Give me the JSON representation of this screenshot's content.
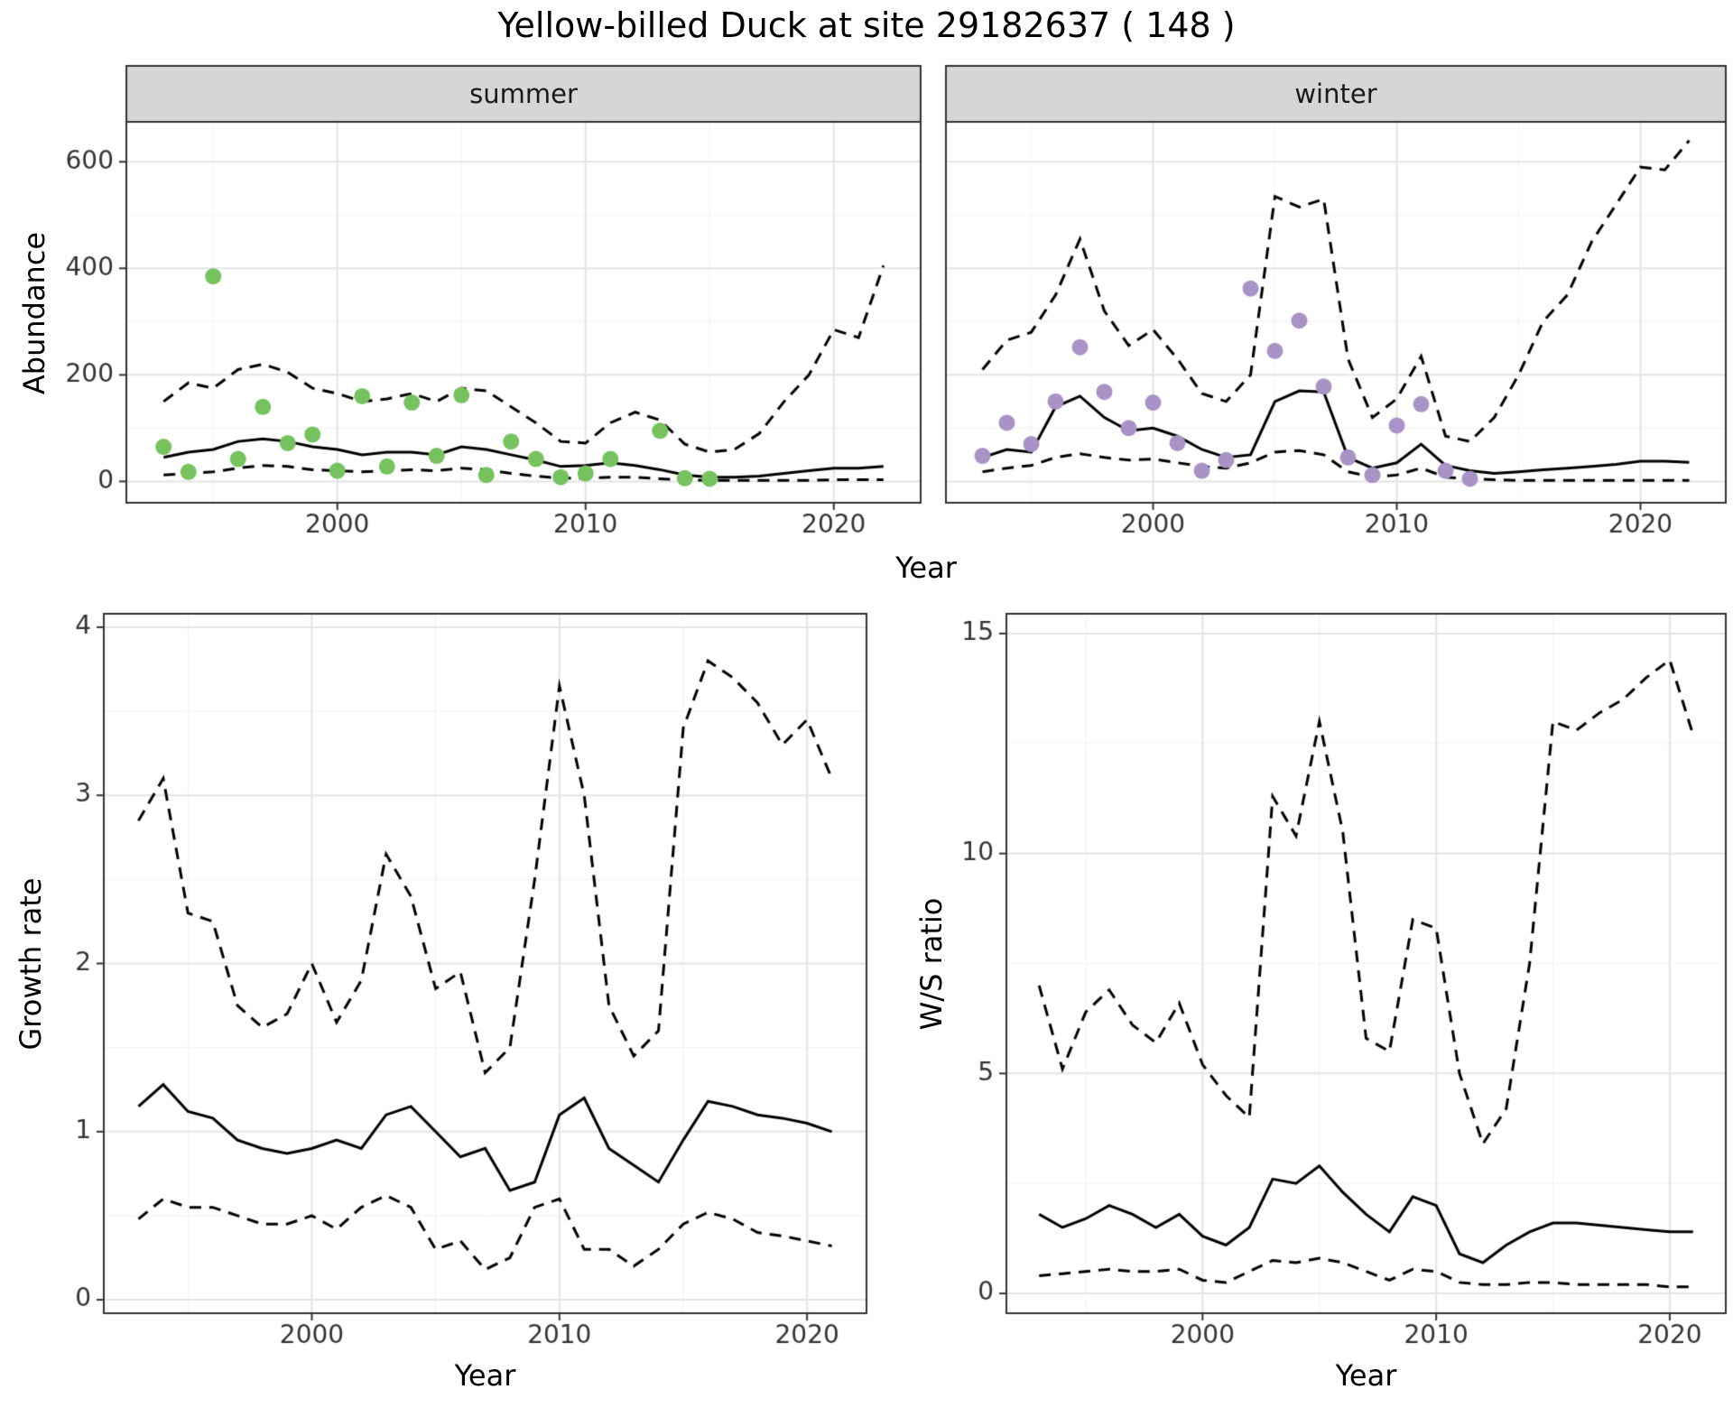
{
  "title": "Yellow-billed Duck at site 29182637 ( 148 )",
  "styles": {
    "line_color": "#000000",
    "grid_major": "#e4e4e4",
    "grid_minor": "#f3f3f3",
    "panel_border": "#333333",
    "strip_fill": "#d6d6d6",
    "tick_text": "#333333",
    "point_green": "#75c25f",
    "point_purple": "#a993c6"
  },
  "chart_data": [
    {
      "id": "abundance",
      "type": "line",
      "ylabel": "Abundance",
      "xlabel": "Year",
      "xlim": [
        1991.5,
        2023.5
      ],
      "ylim": [
        -40,
        675
      ],
      "xticks": [
        2000,
        2010,
        2020
      ],
      "yticks": [
        0,
        200,
        400,
        600
      ],
      "facets": [
        {
          "label": "summer",
          "x": [
            1993,
            1994,
            1995,
            1996,
            1997,
            1998,
            1999,
            2000,
            2001,
            2002,
            2003,
            2004,
            2005,
            2006,
            2007,
            2008,
            2009,
            2010,
            2011,
            2012,
            2013,
            2014,
            2015,
            2016,
            2017,
            2018,
            2019,
            2020,
            2021,
            2022
          ],
          "series": [
            {
              "name": "median",
              "style": "solid",
              "values": [
                45,
                55,
                60,
                75,
                80,
                75,
                65,
                60,
                50,
                55,
                55,
                50,
                65,
                60,
                50,
                40,
                28,
                30,
                35,
                30,
                22,
                12,
                8,
                8,
                10,
                15,
                20,
                25,
                25,
                28
              ]
            },
            {
              "name": "upper-ci",
              "style": "dashed",
              "values": [
                150,
                185,
                175,
                210,
                220,
                205,
                175,
                165,
                150,
                155,
                165,
                150,
                175,
                170,
                140,
                110,
                75,
                72,
                110,
                130,
                115,
                70,
                55,
                60,
                90,
                150,
                200,
                285,
                270,
                405
              ]
            },
            {
              "name": "lower-ci",
              "style": "dashed",
              "values": [
                12,
                15,
                18,
                25,
                30,
                28,
                22,
                20,
                18,
                20,
                22,
                20,
                25,
                22,
                15,
                10,
                6,
                6,
                8,
                8,
                5,
                3,
                2,
                2,
                2,
                2,
                2,
                3,
                3,
                3
              ]
            }
          ],
          "points": {
            "name": "observed-summer-counts",
            "color": "#75c25f",
            "x": [
              1993,
              1994,
              1995,
              1996,
              1997,
              1998,
              1999,
              2000,
              2001,
              2002,
              2003,
              2004,
              2005,
              2006,
              2007,
              2008,
              2009,
              2010,
              2011,
              2013,
              2014,
              2015
            ],
            "y": [
              65,
              18,
              385,
              42,
              140,
              72,
              88,
              20,
              160,
              28,
              148,
              48,
              162,
              12,
              75,
              42,
              8,
              15,
              42,
              95,
              6,
              5
            ]
          }
        },
        {
          "label": "winter",
          "x": [
            1993,
            1994,
            1995,
            1996,
            1997,
            1998,
            1999,
            2000,
            2001,
            2002,
            2003,
            2004,
            2005,
            2006,
            2007,
            2008,
            2009,
            2010,
            2011,
            2012,
            2013,
            2014,
            2015,
            2016,
            2017,
            2018,
            2019,
            2020,
            2021,
            2022
          ],
          "series": [
            {
              "name": "median",
              "style": "solid",
              "values": [
                45,
                60,
                55,
                140,
                160,
                120,
                95,
                100,
                85,
                60,
                45,
                50,
                150,
                170,
                168,
                45,
                25,
                35,
                70,
                30,
                20,
                15,
                18,
                22,
                25,
                28,
                32,
                38,
                38,
                36
              ]
            },
            {
              "name": "upper-ci",
              "style": "dashed",
              "values": [
                210,
                265,
                280,
                350,
                455,
                320,
                255,
                285,
                230,
                165,
                150,
                200,
                535,
                515,
                530,
                230,
                120,
                155,
                235,
                85,
                75,
                120,
                200,
                300,
                350,
                450,
                520,
                590,
                585,
                640
              ]
            },
            {
              "name": "lower-ci",
              "style": "dashed",
              "values": [
                18,
                25,
                30,
                45,
                52,
                45,
                40,
                42,
                35,
                28,
                25,
                35,
                55,
                58,
                50,
                18,
                8,
                12,
                25,
                8,
                5,
                3,
                2,
                2,
                2,
                2,
                2,
                2,
                2,
                2
              ]
            }
          ],
          "points": {
            "name": "observed-winter-counts",
            "color": "#a993c6",
            "x": [
              1993,
              1994,
              1995,
              1996,
              1997,
              1998,
              1999,
              2000,
              2001,
              2002,
              2003,
              2004,
              2005,
              2006,
              2007,
              2008,
              2009,
              2010,
              2011,
              2012,
              2013
            ],
            "y": [
              48,
              110,
              70,
              150,
              252,
              168,
              100,
              148,
              72,
              20,
              40,
              362,
              245,
              302,
              178,
              45,
              12,
              105,
              145,
              20,
              5
            ]
          }
        }
      ]
    },
    {
      "id": "growth-rate",
      "type": "line",
      "ylabel": "Growth rate",
      "xlabel": "Year",
      "xlim": [
        1991.6,
        2022.4
      ],
      "ylim": [
        -0.08,
        4.08
      ],
      "xticks": [
        2000,
        2010,
        2020
      ],
      "yticks": [
        0,
        1,
        2,
        3,
        4
      ],
      "x": [
        1993,
        1994,
        1995,
        1996,
        1997,
        1998,
        1999,
        2000,
        2001,
        2002,
        2003,
        2004,
        2005,
        2006,
        2007,
        2008,
        2009,
        2010,
        2011,
        2012,
        2013,
        2014,
        2015,
        2016,
        2017,
        2018,
        2019,
        2020,
        2021
      ],
      "series": [
        {
          "name": "median",
          "style": "solid",
          "values": [
            1.15,
            1.28,
            1.12,
            1.08,
            0.95,
            0.9,
            0.87,
            0.9,
            0.95,
            0.9,
            1.1,
            1.15,
            1.0,
            0.85,
            0.9,
            0.65,
            0.7,
            1.1,
            1.2,
            0.9,
            0.8,
            0.7,
            0.95,
            1.18,
            1.15,
            1.1,
            1.08,
            1.05,
            1.0
          ]
        },
        {
          "name": "upper-ci",
          "style": "dashed",
          "values": [
            2.85,
            3.1,
            2.3,
            2.25,
            1.75,
            1.62,
            1.7,
            2.0,
            1.65,
            1.9,
            2.65,
            2.4,
            1.85,
            1.95,
            1.35,
            1.5,
            2.5,
            3.65,
            3.0,
            1.75,
            1.45,
            1.6,
            3.4,
            3.8,
            3.7,
            3.55,
            3.3,
            3.45,
            3.1
          ]
        },
        {
          "name": "lower-ci",
          "style": "dashed",
          "values": [
            0.48,
            0.6,
            0.55,
            0.55,
            0.5,
            0.45,
            0.45,
            0.5,
            0.42,
            0.55,
            0.62,
            0.55,
            0.3,
            0.35,
            0.18,
            0.25,
            0.55,
            0.6,
            0.3,
            0.3,
            0.2,
            0.3,
            0.45,
            0.52,
            0.48,
            0.4,
            0.38,
            0.35,
            0.32
          ]
        }
      ]
    },
    {
      "id": "ws-ratio",
      "type": "line",
      "ylabel": "W/S ratio",
      "xlabel": "Year",
      "xlim": [
        1991.6,
        2022.4
      ],
      "ylim": [
        -0.45,
        15.45
      ],
      "xticks": [
        2000,
        2010,
        2020
      ],
      "yticks": [
        0,
        5,
        10,
        15
      ],
      "x": [
        1993,
        1994,
        1995,
        1996,
        1997,
        1998,
        1999,
        2000,
        2001,
        2002,
        2003,
        2004,
        2005,
        2006,
        2007,
        2008,
        2009,
        2010,
        2011,
        2012,
        2013,
        2014,
        2015,
        2016,
        2017,
        2018,
        2019,
        2020,
        2021
      ],
      "series": [
        {
          "name": "median",
          "style": "solid",
          "values": [
            1.8,
            1.5,
            1.7,
            2.0,
            1.8,
            1.5,
            1.8,
            1.3,
            1.1,
            1.5,
            2.6,
            2.5,
            2.9,
            2.3,
            1.8,
            1.4,
            2.2,
            2.0,
            0.9,
            0.7,
            1.1,
            1.4,
            1.6,
            1.6,
            1.55,
            1.5,
            1.45,
            1.4,
            1.4
          ]
        },
        {
          "name": "upper-ci",
          "style": "dashed",
          "values": [
            7.0,
            5.1,
            6.4,
            6.9,
            6.1,
            5.7,
            6.6,
            5.2,
            4.5,
            4.0,
            11.3,
            10.4,
            13.0,
            10.5,
            5.8,
            5.5,
            8.5,
            8.3,
            5.0,
            3.4,
            4.2,
            7.5,
            13.0,
            12.8,
            13.2,
            13.5,
            14.0,
            14.4,
            12.7
          ]
        },
        {
          "name": "lower-ci",
          "style": "dashed",
          "values": [
            0.4,
            0.45,
            0.5,
            0.55,
            0.5,
            0.5,
            0.55,
            0.3,
            0.25,
            0.5,
            0.75,
            0.7,
            0.8,
            0.7,
            0.5,
            0.3,
            0.55,
            0.5,
            0.25,
            0.2,
            0.2,
            0.25,
            0.25,
            0.2,
            0.2,
            0.2,
            0.2,
            0.15,
            0.15
          ]
        }
      ]
    }
  ]
}
